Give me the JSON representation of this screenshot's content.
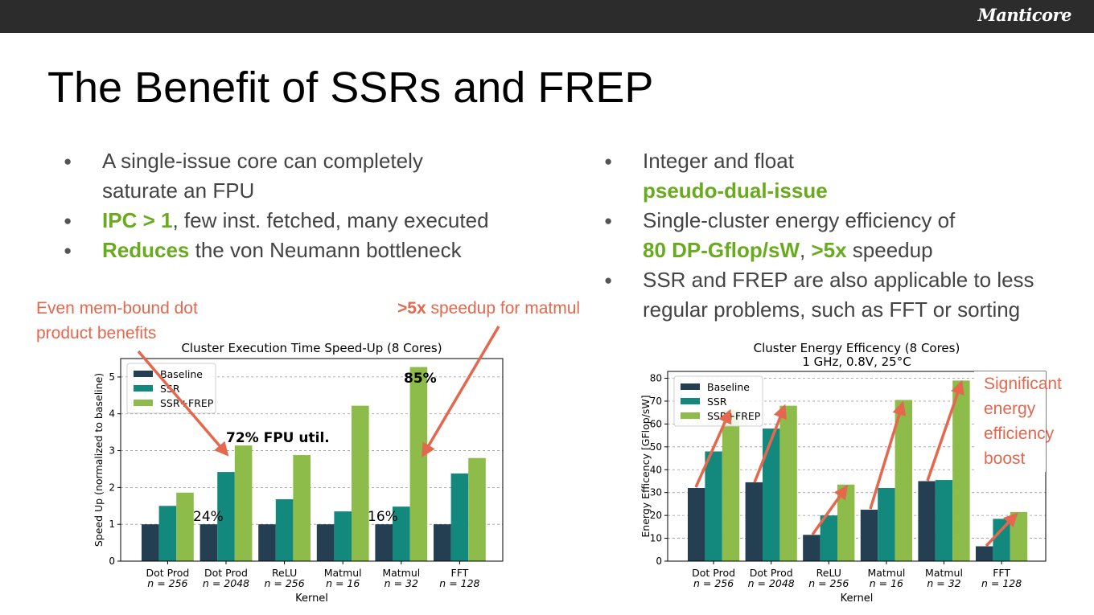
{
  "brand": "Manticore",
  "title": "The Benefit of SSRs and FREP",
  "bullets_left": [
    {
      "parts": [
        "A single-issue core can completely saturate an FPU"
      ]
    },
    {
      "hl": "IPC > 1",
      "rest": ", few inst. fetched, many executed"
    },
    {
      "hl": "Reduces",
      "rest": " the von Neumann bottleneck"
    }
  ],
  "bullets_right": [
    {
      "pre": "Integer and float ",
      "hl": "pseudo-dual-issue"
    },
    {
      "pre": "Single-cluster energy efficiency of ",
      "hl1": "80 DP-Gflop/sW",
      "mid": ", ",
      "hl2": ">5x",
      "post": " speedup"
    },
    {
      "pre": "SSR and FREP are also applicable to less regular problems, such as FFT or sorting"
    }
  ],
  "annotations": {
    "mem_bound": "Even mem-bound dot product benefits",
    "speedup_bold": ">5x",
    "speedup_rest": " speedup for matmul",
    "energy_boost": "Significant energy efficiency boost",
    "fpu_util": "72% FPU util.",
    "util_85": "85%",
    "util_24": "24%",
    "util_16": "16%"
  },
  "colors": {
    "baseline": "#253f52",
    "ssr": "#13897e",
    "ssr_frep": "#8dbc4a",
    "accent": "#e4674e",
    "highlight": "#6aaa1e"
  },
  "chart_data": [
    {
      "type": "bar",
      "title": "Cluster Execution Time Speed-Up (8 Cores)",
      "subtitle": "",
      "xlabel": "Kernel",
      "ylabel": "Speed Up (normalized to baseline)",
      "ylim": [
        0,
        5.5
      ],
      "yticks": [
        0,
        1,
        2,
        3,
        4,
        5
      ],
      "grid": true,
      "legend": "top-left",
      "categories": [
        [
          "Dot Prod",
          "n = 256"
        ],
        [
          "Dot Prod",
          "n = 2048"
        ],
        [
          "ReLU",
          "n = 256"
        ],
        [
          "Matmul",
          "n = 16"
        ],
        [
          "Matmul",
          "n = 32"
        ],
        [
          "FFT",
          "n = 128"
        ]
      ],
      "series": [
        {
          "name": "Baseline",
          "values": [
            1.0,
            1.0,
            1.0,
            1.0,
            1.0,
            1.0
          ]
        },
        {
          "name": "SSR",
          "values": [
            1.5,
            2.42,
            1.68,
            1.35,
            1.48,
            2.38
          ]
        },
        {
          "name": "SSR+FREP",
          "values": [
            1.86,
            3.14,
            2.88,
            4.22,
            5.27,
            2.8
          ]
        }
      ]
    },
    {
      "type": "bar",
      "title": "Cluster Energy Efficency (8 Cores)",
      "subtitle": "1 GHz, 0.8V, 25°C",
      "xlabel": "Kernel",
      "ylabel": "Energy Efficency [GFlop/sW]",
      "ylim": [
        0,
        83
      ],
      "yticks": [
        0,
        10,
        20,
        30,
        40,
        50,
        60,
        70,
        80
      ],
      "grid": true,
      "legend": "top-left",
      "categories": [
        [
          "Dot Prod",
          "n = 256"
        ],
        [
          "Dot Prod",
          "n = 2048"
        ],
        [
          "ReLU",
          "n = 256"
        ],
        [
          "Matmul",
          "n = 16"
        ],
        [
          "Matmul",
          "n = 32"
        ],
        [
          "FFT",
          "n = 128"
        ]
      ],
      "series": [
        {
          "name": "Baseline",
          "values": [
            32,
            34.5,
            11.5,
            22.5,
            35,
            6.5
          ]
        },
        {
          "name": "SSR",
          "values": [
            48,
            58,
            20,
            32,
            35.5,
            18.5
          ]
        },
        {
          "name": "SSR+FREP",
          "values": [
            66,
            68,
            33.5,
            70.5,
            79,
            21.5
          ]
        }
      ]
    }
  ]
}
